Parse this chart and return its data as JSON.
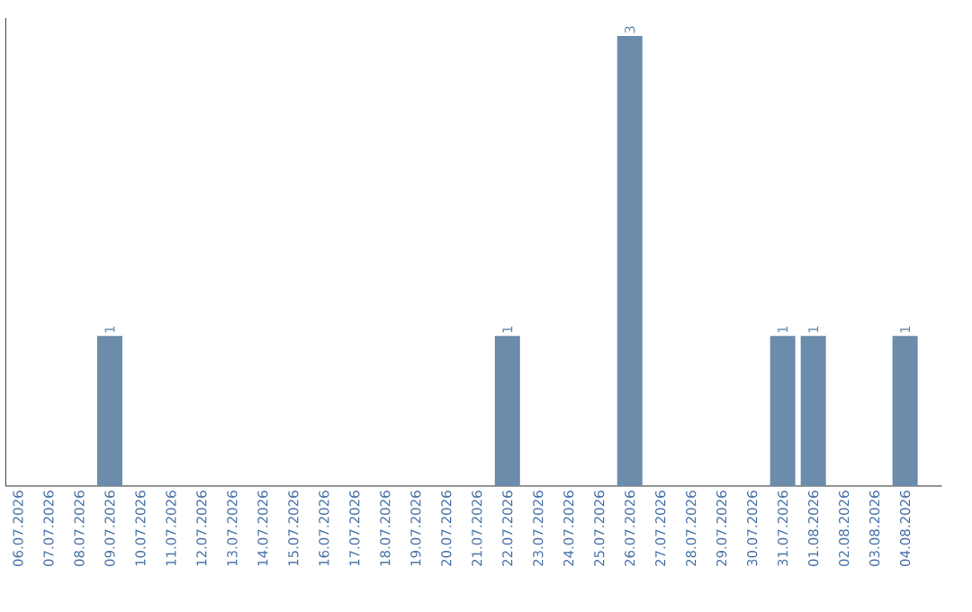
{
  "chart_data": {
    "type": "bar",
    "categories": [
      "06.07.2026",
      "07.07.2026",
      "08.07.2026",
      "09.07.2026",
      "10.07.2026",
      "11.07.2026",
      "12.07.2026",
      "13.07.2026",
      "14.07.2026",
      "15.07.2026",
      "16.07.2026",
      "17.07.2026",
      "18.07.2026",
      "19.07.2026",
      "20.07.2026",
      "21.07.2026",
      "22.07.2026",
      "23.07.2026",
      "24.07.2026",
      "25.07.2026",
      "26.07.2026",
      "27.07.2026",
      "28.07.2026",
      "29.07.2026",
      "30.07.2026",
      "31.07.2026",
      "01.08.2026",
      "02.08.2026",
      "03.08.2026",
      "04.08.2026"
    ],
    "values": [
      0,
      0,
      0,
      1,
      0,
      0,
      0,
      0,
      0,
      0,
      0,
      0,
      0,
      0,
      0,
      0,
      1,
      0,
      0,
      0,
      3,
      0,
      0,
      0,
      0,
      1,
      1,
      0,
      0,
      1
    ],
    "value_labels": [
      null,
      null,
      null,
      "1",
      null,
      null,
      null,
      null,
      null,
      null,
      null,
      null,
      null,
      null,
      null,
      null,
      "1",
      null,
      null,
      null,
      "3",
      null,
      null,
      null,
      null,
      "1",
      "1",
      null,
      null,
      "1"
    ],
    "color": "#6b8cab",
    "ylim": [
      0,
      3.12
    ],
    "tick_labels": "x"
  }
}
